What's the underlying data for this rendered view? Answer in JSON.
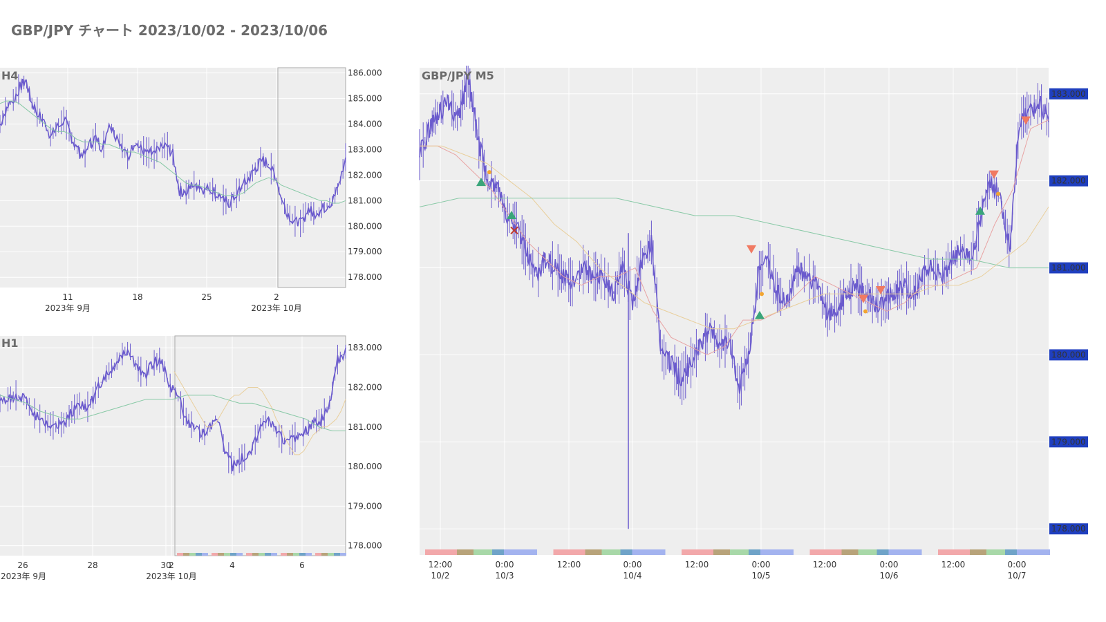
{
  "title": "GBP/JPY チャート 2023/10/02 - 2023/10/06",
  "colors": {
    "candle": "#6a5acd",
    "bg": "#eeeeee",
    "grid": "#ffffff",
    "ma_fast": "#e8a3a3",
    "ma_mid": "#e9cf9c",
    "ma_slow": "#88c9a6",
    "price_label_bg": "#1f3fbf",
    "buy": "#3aa57a",
    "sell": "#f07a62",
    "tp": "#f2a531",
    "cross": "#c0392b",
    "sessions": [
      "#f2a8aa",
      "#b8a37a",
      "#a8d8a8",
      "#6fa3c8",
      "#a3b3ef"
    ]
  },
  "chart_data": [
    {
      "type": "line",
      "title": "H4",
      "x_ticks": [
        "11",
        "18",
        "25",
        "2"
      ],
      "x_month_labels": [
        "2023年 9月",
        "2023年 10月"
      ],
      "y_ticks": [
        "186.000",
        "185.000",
        "184.000",
        "183.000",
        "182.000",
        "181.000",
        "180.000",
        "179.000",
        "178.000"
      ],
      "ylim": [
        177.6,
        186.2
      ],
      "series": [
        {
          "values": [
            184.0,
            184.6,
            184.9,
            185.4,
            185.7,
            184.8,
            184.4,
            184.0,
            183.5,
            183.9,
            184.2,
            183.6,
            183.0,
            182.7,
            183.2,
            183.5,
            183.0,
            184.0,
            183.6,
            183.2,
            182.6,
            183.3,
            183.0,
            182.9,
            182.8,
            183.0,
            183.2,
            182.8,
            181.4,
            181.3,
            181.6,
            181.6,
            181.4,
            181.5,
            181.2,
            181.0,
            180.9,
            181.3,
            181.6,
            181.9,
            182.3,
            182.6,
            182.4,
            182.0,
            181.0,
            180.5,
            180.2,
            180.1,
            180.7,
            180.5,
            180.6,
            180.8,
            181.0,
            181.6,
            182.7
          ]
        },
        {
          "values": [
            184.8,
            184.9,
            184.9,
            184.8,
            184.6,
            184.4,
            184.2,
            184.0,
            183.8,
            183.7,
            183.7,
            183.6,
            183.4,
            183.3,
            183.3,
            183.3,
            183.2,
            183.2,
            183.1,
            183.0,
            182.9,
            182.9,
            182.8,
            182.7,
            182.6,
            182.5,
            182.3,
            182.1,
            181.9,
            181.7,
            181.6,
            181.6,
            181.5,
            181.4,
            181.3,
            181.2,
            181.2,
            181.2,
            181.3,
            181.5,
            181.7,
            181.8,
            181.9,
            181.8,
            181.6,
            181.5,
            181.4,
            181.3,
            181.2,
            181.1,
            181.0,
            181.0,
            180.9,
            180.9,
            181.0
          ]
        }
      ]
    },
    {
      "type": "line",
      "title": "H1",
      "x_ticks": [
        "26",
        "28",
        "30",
        "2",
        "4",
        "6"
      ],
      "x_month_labels": [
        "2023年 9月",
        "2023年 10月"
      ],
      "y_ticks": [
        "183.000",
        "182.000",
        "181.000",
        "180.000",
        "179.000",
        "178.000"
      ],
      "ylim": [
        177.75,
        183.3
      ],
      "series": [
        {
          "values": [
            181.6,
            181.7,
            181.8,
            181.7,
            181.4,
            181.2,
            181.1,
            181.0,
            181.1,
            181.4,
            181.6,
            181.5,
            181.9,
            182.3,
            182.5,
            182.8,
            183.0,
            182.5,
            182.3,
            182.6,
            182.7,
            182.1,
            181.8,
            181.3,
            181.0,
            180.8,
            180.9,
            181.3,
            180.4,
            180.0,
            180.2,
            180.3,
            180.8,
            181.2,
            181.0,
            180.7,
            180.6,
            180.8,
            180.9,
            181.1,
            181.2,
            181.6,
            182.7,
            182.9
          ]
        },
        {
          "values": [
            182.4,
            182.2,
            182.0,
            181.8,
            181.6,
            181.4,
            181.2,
            181.0,
            181.0,
            181.1,
            181.3,
            181.5,
            181.7,
            181.8,
            181.8,
            181.9,
            182.0,
            182.0,
            182.0,
            181.9,
            181.7,
            181.5,
            181.2,
            181.0,
            180.7,
            180.5,
            180.3,
            180.3,
            180.4,
            180.6,
            180.8,
            180.9,
            181.0,
            181.0,
            181.1,
            181.2,
            181.4,
            181.7
          ]
        },
        {
          "values": [
            181.8,
            181.7,
            181.6,
            181.4,
            181.3,
            181.2,
            181.2,
            181.3,
            181.4,
            181.5,
            181.6,
            181.7,
            181.7,
            181.7,
            181.8,
            181.8,
            181.8,
            181.7,
            181.6,
            181.6,
            181.5,
            181.4,
            181.3,
            181.2,
            181.0,
            180.9,
            180.9
          ]
        }
      ]
    },
    {
      "type": "line",
      "title": "GBP/JPY M5",
      "x_ticks": [
        "12:00\n10/2",
        "0:00\n10/3",
        "12:00",
        "0:00\n10/4",
        "12:00",
        "0:00\n10/5",
        "12:00",
        "0:00\n10/6",
        "12:00",
        "0:00\n10/7"
      ],
      "y_ticks": [
        "183.000",
        "182.000",
        "181.000",
        "180.000",
        "179.000",
        "178.000"
      ],
      "ylim": [
        177.7,
        183.3
      ],
      "series": [
        {
          "values": [
            182.3,
            182.6,
            182.8,
            182.9,
            182.7,
            183.2,
            182.5,
            182.0,
            181.9,
            181.6,
            181.5,
            181.2,
            180.9,
            181.1,
            181.0,
            180.9,
            180.8,
            181.0,
            180.9,
            180.9,
            180.7,
            181.0,
            180.6,
            181.1,
            181.3,
            180.0,
            179.9,
            179.7,
            179.9,
            180.1,
            180.3,
            180.1,
            180.2,
            179.6,
            180.0,
            180.9,
            181.1,
            180.7,
            180.6,
            181.0,
            180.9,
            180.8,
            180.5,
            180.5,
            180.7,
            180.8,
            180.7,
            180.6,
            180.6,
            180.7,
            180.8,
            180.7,
            180.9,
            181.0,
            180.9,
            181.1,
            181.2,
            181.1,
            181.6,
            182.0,
            181.8,
            181.2,
            182.7,
            182.8,
            182.9,
            182.7
          ]
        },
        {
          "values": [
            182.4,
            182.4,
            182.3,
            182.1,
            181.9,
            181.6,
            181.3,
            181.1,
            180.9,
            180.8,
            180.9,
            180.9,
            181.0,
            180.5,
            180.2,
            180.1,
            180.0,
            180.1,
            180.4,
            180.4,
            180.5,
            180.7,
            180.9,
            180.8,
            180.7,
            180.6,
            180.5,
            180.6,
            180.8,
            180.8,
            180.9,
            181.0,
            181.5,
            181.9,
            182.6,
            182.7
          ]
        },
        {
          "values": [
            182.4,
            182.4,
            182.3,
            182.2,
            182.0,
            181.8,
            181.5,
            181.3,
            181.0,
            180.8,
            180.6,
            180.5,
            180.4,
            180.3,
            180.3,
            180.4,
            180.5,
            180.6,
            180.7,
            180.7,
            180.7,
            180.7,
            180.7,
            180.8,
            180.8,
            180.9,
            181.1,
            181.3,
            181.7
          ]
        },
        {
          "values": [
            181.7,
            181.8,
            181.8,
            181.8,
            181.8,
            181.8,
            181.7,
            181.6,
            181.6,
            181.5,
            181.4,
            181.3,
            181.2,
            181.1,
            181.1,
            181.0,
            181.0
          ]
        }
      ]
    }
  ]
}
